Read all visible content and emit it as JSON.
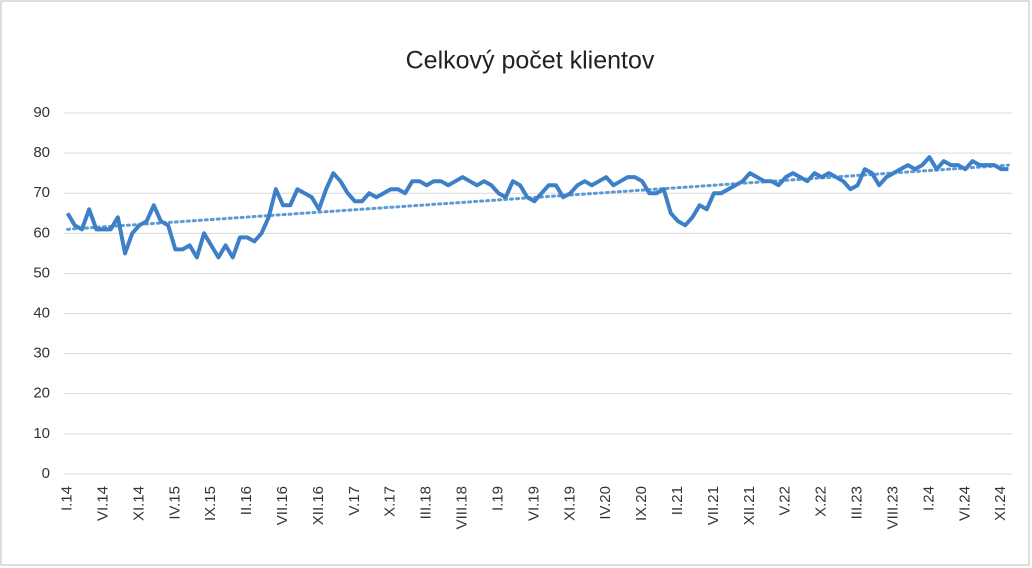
{
  "chart_data": {
    "type": "line",
    "title": "Celkový počet klientov",
    "categories": [
      "I.14",
      null,
      null,
      null,
      null,
      "VI.14",
      null,
      null,
      null,
      null,
      "XI.14",
      null,
      null,
      null,
      null,
      "IV.15",
      null,
      null,
      null,
      null,
      "IX.15",
      null,
      null,
      null,
      null,
      "II.16",
      null,
      null,
      null,
      null,
      "VII.16",
      null,
      null,
      null,
      null,
      "XII.16",
      null,
      null,
      null,
      null,
      "V.17",
      null,
      null,
      null,
      null,
      "X.17",
      null,
      null,
      null,
      null,
      "III.18",
      null,
      null,
      null,
      null,
      "VIII.18",
      null,
      null,
      null,
      null,
      "I.19",
      null,
      null,
      null,
      null,
      "VI.19",
      null,
      null,
      null,
      null,
      "XI.19",
      null,
      null,
      null,
      null,
      "IV.20",
      null,
      null,
      null,
      null,
      "IX.20",
      null,
      null,
      null,
      null,
      "II.21",
      null,
      null,
      null,
      null,
      "VII.21",
      null,
      null,
      null,
      null,
      "XII.21",
      null,
      null,
      null,
      null,
      "V.22",
      null,
      null,
      null,
      null,
      "X.22",
      null,
      null,
      null,
      null,
      "III.23",
      null,
      null,
      null,
      null,
      "VIII.23",
      null,
      null,
      null,
      null,
      "I.24",
      null,
      null,
      null,
      null,
      "VI.24",
      null,
      null,
      null,
      null,
      "XI.24",
      null
    ],
    "series": [
      {
        "color": "#3d80c8",
        "values": [
          65,
          62,
          61,
          66,
          61,
          61,
          61,
          64,
          55,
          60,
          62,
          63,
          67,
          63,
          62,
          56,
          56,
          57,
          54,
          60,
          57,
          54,
          57,
          54,
          59,
          59,
          58,
          60,
          64,
          71,
          67,
          67,
          71,
          70,
          69,
          66,
          71,
          75,
          73,
          70,
          68,
          68,
          70,
          69,
          70,
          71,
          71,
          70,
          73,
          73,
          72,
          73,
          73,
          72,
          73,
          74,
          73,
          72,
          73,
          72,
          70,
          69,
          73,
          72,
          69,
          68,
          70,
          72,
          72,
          69,
          70,
          72,
          73,
          72,
          73,
          74,
          72,
          73,
          74,
          74,
          73,
          70,
          70,
          71,
          65,
          63,
          62,
          64,
          67,
          66,
          70,
          70,
          71,
          72,
          73,
          75,
          74,
          73,
          73,
          72,
          74,
          75,
          74,
          73,
          75,
          74,
          75,
          74,
          73,
          71,
          72,
          76,
          75,
          72,
          74,
          75,
          76,
          77,
          76,
          77,
          79,
          76,
          78,
          77,
          77,
          76,
          78,
          77,
          77,
          77,
          76,
          76
        ]
      }
    ],
    "trendline": [
      61,
      77
    ],
    "ylim": [
      0,
      90
    ],
    "yticks": [
      0,
      10,
      20,
      30,
      40,
      50,
      60,
      70,
      80,
      90
    ],
    "grid": true
  }
}
